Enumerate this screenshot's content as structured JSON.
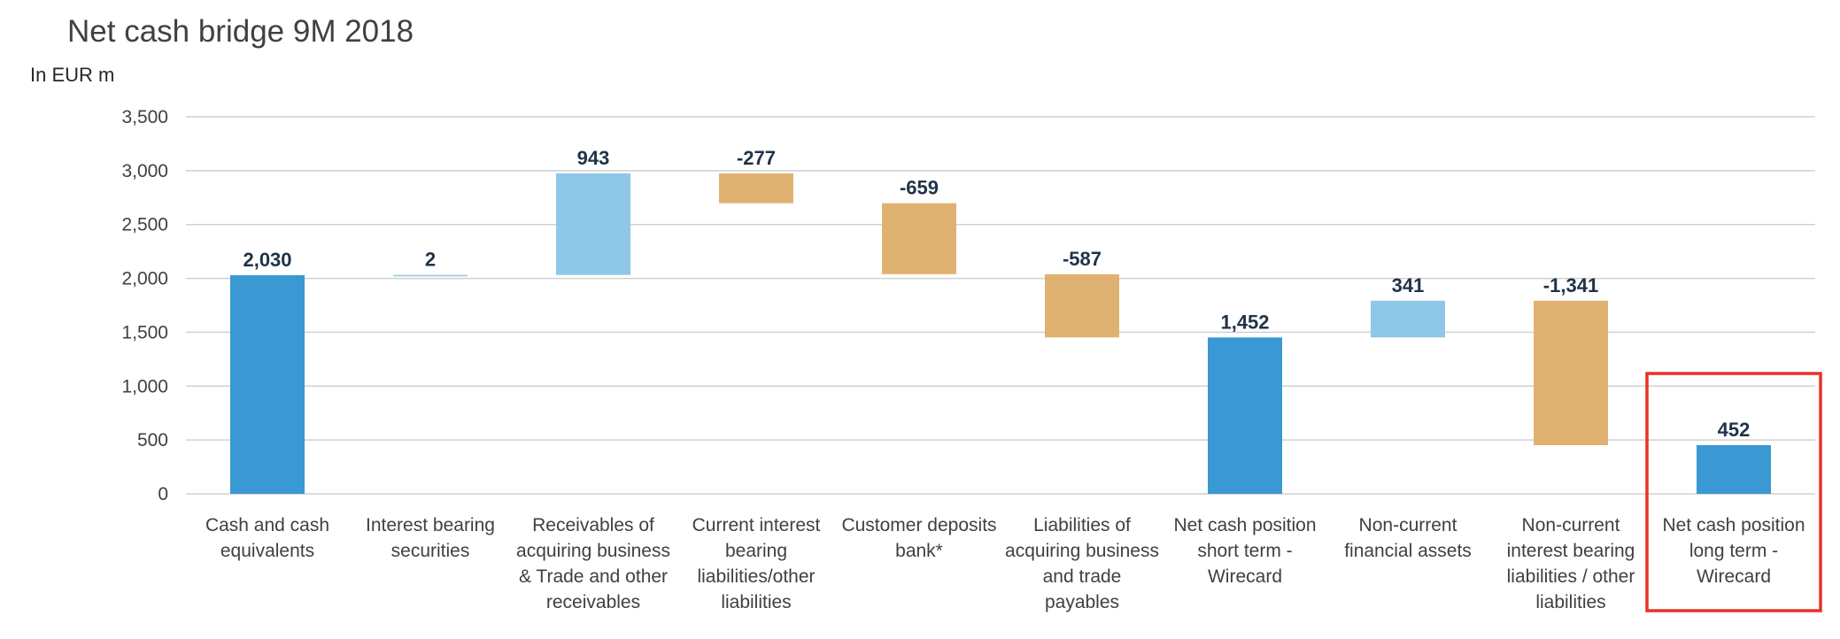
{
  "chart_data": {
    "type": "bar",
    "subtype": "waterfall",
    "title": "Net cash bridge 9M 2018",
    "unit": "In EUR m",
    "xlabel": "",
    "ylabel": "",
    "ylim": [
      0,
      3500
    ],
    "yticks": [
      "0",
      "500",
      "1,000",
      "1,500",
      "2,000",
      "2,500",
      "3,000",
      "3,500"
    ],
    "grid": true,
    "categories": [
      [
        "Cash and cash",
        "equivalents"
      ],
      [
        "Interest bearing",
        "securities"
      ],
      [
        "Receivables of",
        "acquiring business",
        "& Trade and other",
        "receivables"
      ],
      [
        "Current interest",
        "bearing",
        "liabilities/other",
        "liabilities"
      ],
      [
        "Customer deposits",
        "bank*"
      ],
      [
        "Liabilities of",
        "acquiring business",
        "and trade",
        "payables"
      ],
      [
        "Net cash position",
        "short term -",
        "Wirecard"
      ],
      [
        "Non-current",
        "financial assets"
      ],
      [
        "Non-current",
        "interest bearing",
        "liabilities / other",
        "liabilities"
      ],
      [
        "Net cash position",
        "long term -",
        "Wirecard"
      ]
    ],
    "bars": [
      {
        "kind": "total",
        "start": 0,
        "end": 2030,
        "label": "2,030"
      },
      {
        "kind": "increase",
        "start": 2030,
        "end": 2032,
        "label": "2"
      },
      {
        "kind": "increase",
        "start": 2032,
        "end": 2975,
        "label": "943"
      },
      {
        "kind": "decrease",
        "start": 2975,
        "end": 2698,
        "label": "-277"
      },
      {
        "kind": "decrease",
        "start": 2698,
        "end": 2039,
        "label": "-659"
      },
      {
        "kind": "decrease",
        "start": 2039,
        "end": 1452,
        "label": "-587"
      },
      {
        "kind": "total",
        "start": 0,
        "end": 1452,
        "label": "1,452"
      },
      {
        "kind": "increase",
        "start": 1452,
        "end": 1793,
        "label": "341"
      },
      {
        "kind": "decrease",
        "start": 1793,
        "end": 452,
        "label": "-1,341"
      },
      {
        "kind": "total",
        "start": 0,
        "end": 452,
        "label": "452"
      }
    ],
    "highlighted_index": 9,
    "colors": {
      "total": "#3a98d3",
      "increase": "#8fc7e8",
      "decrease": "#e0b271",
      "highlight_box": "#e8322b",
      "grid": "#d0d0d0"
    }
  }
}
